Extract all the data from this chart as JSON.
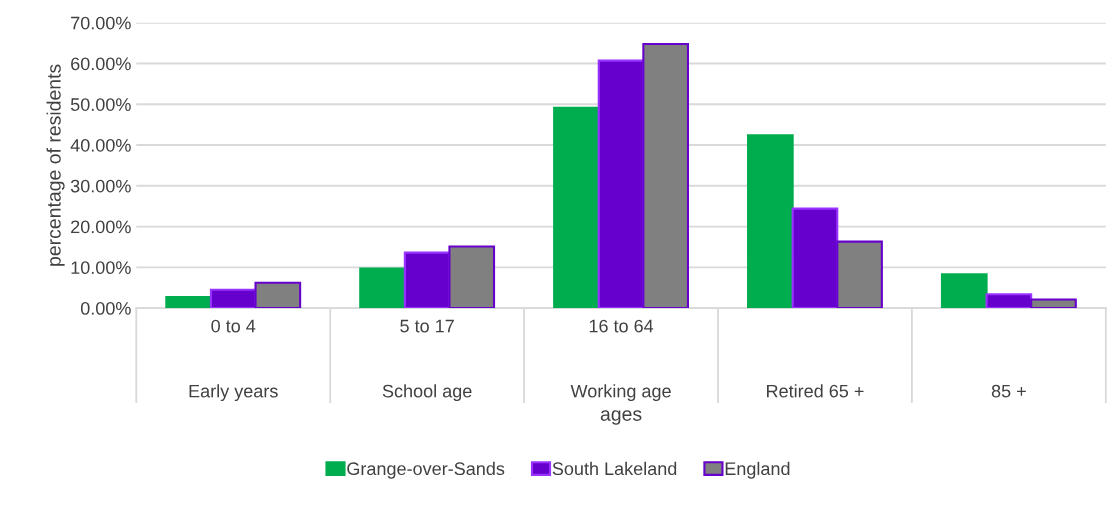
{
  "chart_data": {
    "type": "bar",
    "xlabel": "ages",
    "ylabel": "percentage of residents",
    "categories": [
      "0 to 4\n\nEarly years",
      "5 to 17\n\nSchool age",
      "16 to 64\n\nWorking age",
      "\n\nRetired 65 +",
      "\n\n85 +"
    ],
    "series": [
      {
        "name": "Grange-over-Sands",
        "color": "#00ad4e",
        "values": [
          2.7,
          9.7,
          49.1,
          42.4,
          8.3
        ]
      },
      {
        "name": "South Lakeland",
        "color": "#6600cc",
        "values": [
          4.5,
          13.6,
          60.7,
          24.4,
          3.4
        ]
      },
      {
        "name": "England",
        "color": "#808080",
        "values": [
          6.2,
          15.1,
          64.8,
          16.3,
          2.1
        ]
      }
    ],
    "ylim": [
      0,
      70
    ],
    "yticks": [
      {
        "value": 0,
        "label": "0.00%"
      },
      {
        "value": 10,
        "label": "10.00%"
      },
      {
        "value": 20,
        "label": "20.00%"
      },
      {
        "value": 30,
        "label": "30.00%"
      },
      {
        "value": 40,
        "label": "40.00%"
      },
      {
        "value": 50,
        "label": "50.00%"
      },
      {
        "value": 60,
        "label": "60.00%"
      },
      {
        "value": 70,
        "label": "70.00%"
      }
    ],
    "grid": "y",
    "legend": "bottom"
  }
}
